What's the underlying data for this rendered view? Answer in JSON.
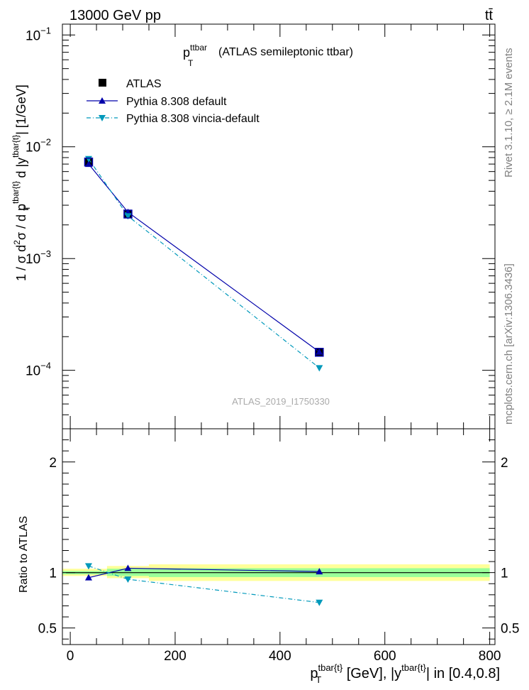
{
  "header": {
    "energy_label": "13000 GeV pp",
    "process_label": "tt̄",
    "side_rivet": "Rivet 3.1.10, ≥ 2.1M events",
    "side_mcplots": "mcplots.cern.ch [arXiv:1306.3436]"
  },
  "chart_data": [
    {
      "type": "scatter",
      "panel": "main",
      "title": "p_T^ttbar (ATLAS semileptonic ttbar)",
      "title_main": "p",
      "title_sub": "T",
      "title_sup": "ttbar",
      "title_rest": "(ATLAS semileptonic ttbar)",
      "watermark": "ATLAS_2019_I1750330",
      "ylabel": "1 / σ d²σ / d p_T^{tbar{t}} d |y^{tbar{t}}| [1/GeV]",
      "ylabel_parts": {
        "a": "1 / σ d",
        "a_sup": "2",
        "b": "σ / d p",
        "b_sup": "tbar{t}",
        "b_sub": "T",
        "c": " d |y",
        "c_sup": "tbar{t}",
        "d": "| [1/GeV]"
      },
      "yscale": "log",
      "ylim": [
        3e-05,
        0.125
      ],
      "xlim": [
        -15,
        810
      ],
      "y_tick_labels": [
        {
          "value": 0.1,
          "base": "10",
          "exp": "−1"
        },
        {
          "value": 0.01,
          "base": "10",
          "exp": "−2"
        },
        {
          "value": 0.001,
          "base": "10",
          "exp": "−3"
        },
        {
          "value": 0.0001,
          "base": "10",
          "exp": "−4"
        }
      ],
      "legend": {
        "placement": "top-left",
        "entries": [
          "ATLAS",
          "Pythia 8.308 default",
          "Pythia 8.308 vincia-default"
        ]
      },
      "series": [
        {
          "name": "ATLAS",
          "color": "#000000",
          "marker": "square",
          "x": [
            35,
            110,
            475
          ],
          "y": [
            0.0073,
            0.0025,
            0.000145
          ]
        },
        {
          "name": "Pythia 8.308 default",
          "color": "#0000aa",
          "marker": "triangle-up",
          "line": "solid",
          "x": [
            35,
            110,
            475
          ],
          "y": [
            0.007,
            0.0026,
            0.000146
          ]
        },
        {
          "name": "Pythia 8.308 vincia-default",
          "color": "#0099bb",
          "marker": "triangle-down",
          "line": "dash-dot",
          "x": [
            35,
            110,
            475
          ],
          "y": [
            0.0078,
            0.0024,
            0.000105
          ]
        }
      ]
    },
    {
      "type": "scatter",
      "panel": "ratio",
      "ylabel": "Ratio to ATLAS",
      "xlabel": "p_T^{tbar{t}} [GeV], |y^{tbar{t}}| in [0.4,0.8]",
      "xlabel_parts": {
        "a": "p",
        "a_sup": "tbar{t}",
        "a_sub": "T",
        "b": " [GeV], |y",
        "b_sup": "tbar{t}",
        "c": "| in [0.4,0.8]"
      },
      "ylim": [
        0.35,
        2.3
      ],
      "xlim": [
        -15,
        810
      ],
      "x_ticks": [
        0,
        200,
        400,
        600,
        800
      ],
      "y_ticks": [
        0.5,
        1,
        2
      ],
      "bands": [
        {
          "x": [
            -15,
            70
          ],
          "stat_sys": [
            0.97,
            1.035
          ],
          "stat": [
            0.985,
            1.015
          ]
        },
        {
          "x": [
            70,
            150
          ],
          "stat_sys": [
            0.95,
            1.06
          ],
          "stat": [
            0.97,
            1.035
          ]
        },
        {
          "x": [
            150,
            800
          ],
          "stat_sys": [
            0.925,
            1.075
          ],
          "stat": [
            0.96,
            1.04
          ]
        }
      ],
      "series": [
        {
          "name": "Pythia 8.308 default",
          "color": "#0000aa",
          "marker": "triangle-up",
          "line": "solid",
          "x": [
            35,
            110,
            475
          ],
          "y": [
            0.955,
            1.04,
            1.01
          ]
        },
        {
          "name": "Pythia 8.308 vincia-default",
          "color": "#0099bb",
          "marker": "triangle-down",
          "line": "dash-dot",
          "x": [
            35,
            110,
            475
          ],
          "y": [
            1.06,
            0.94,
            0.73
          ]
        }
      ]
    }
  ]
}
